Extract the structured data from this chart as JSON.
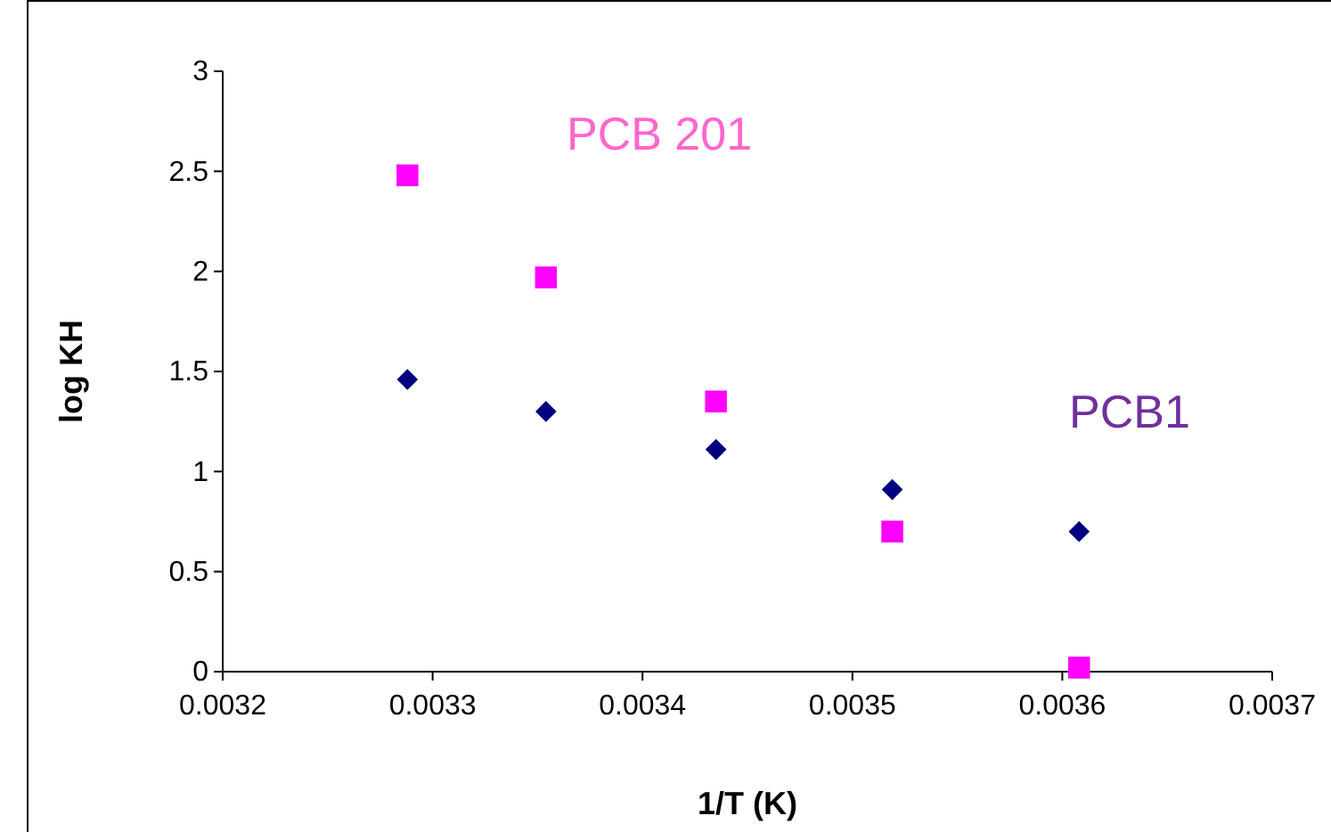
{
  "chart_data": {
    "type": "scatter",
    "xlabel": "1/T (K)",
    "ylabel": "log KH",
    "xlim": [
      0.0032,
      0.0037
    ],
    "xticks": [
      0.0032,
      0.0033,
      0.0034,
      0.0035,
      0.0036,
      0.0037
    ],
    "ylim": [
      0,
      3
    ],
    "yticks": [
      0,
      0.5,
      1,
      1.5,
      2,
      2.5,
      3
    ],
    "grid": false,
    "series": [
      {
        "name": "PCB1",
        "color": "#000080",
        "marker": "diamond",
        "x": [
          0.003288,
          0.003354,
          0.003435,
          0.003519,
          0.003608
        ],
        "values": [
          1.46,
          1.3,
          1.11,
          0.91,
          0.7
        ]
      },
      {
        "name": "PCB 201",
        "color": "#ff00ff",
        "marker": "square",
        "x": [
          0.003288,
          0.003354,
          0.003435,
          0.003519,
          0.003608
        ],
        "values": [
          2.48,
          1.97,
          1.35,
          0.7,
          0.02
        ]
      }
    ]
  }
}
